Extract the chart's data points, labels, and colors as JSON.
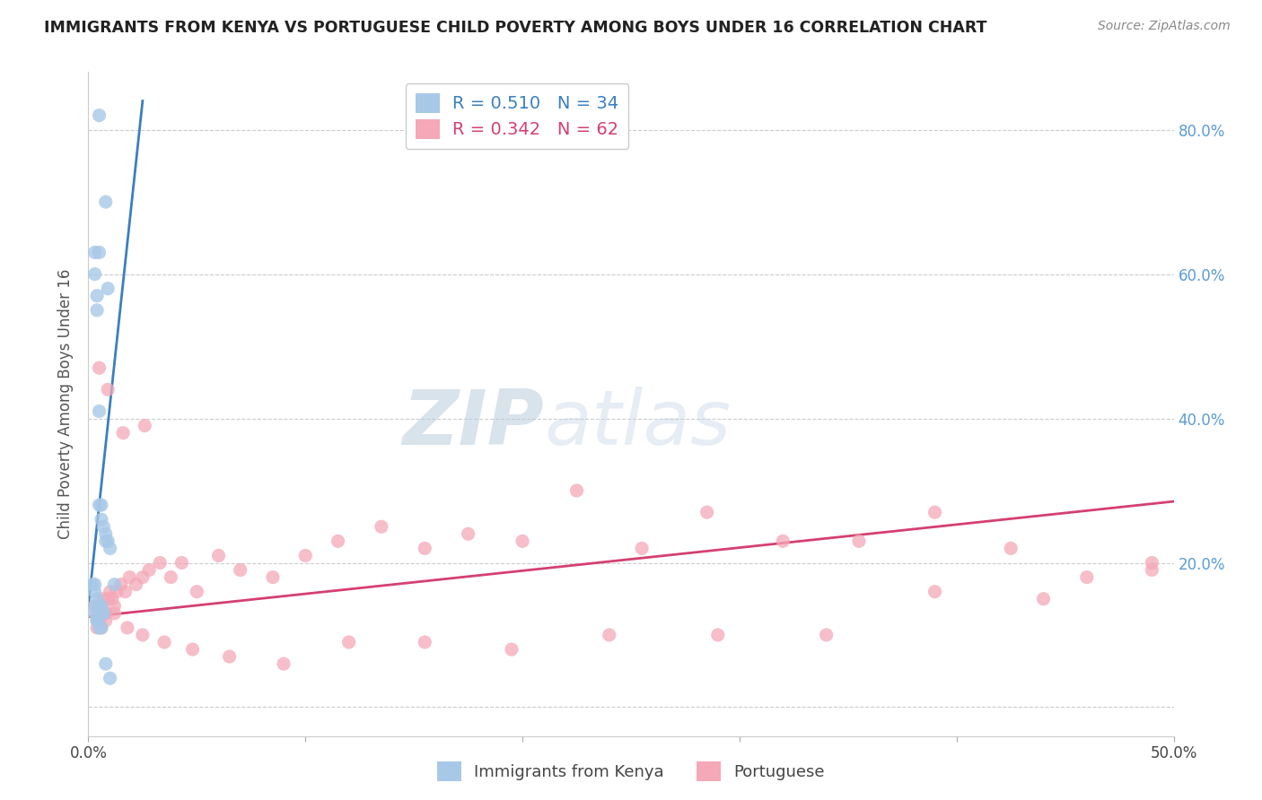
{
  "title": "IMMIGRANTS FROM KENYA VS PORTUGUESE CHILD POVERTY AMONG BOYS UNDER 16 CORRELATION CHART",
  "source": "Source: ZipAtlas.com",
  "ylabel": "Child Poverty Among Boys Under 16",
  "legend_label1": "Immigrants from Kenya",
  "legend_label2": "Portuguese",
  "r1": 0.51,
  "n1": 34,
  "r2": 0.342,
  "n2": 62,
  "xlim": [
    0.0,
    0.5
  ],
  "ylim": [
    -0.04,
    0.88
  ],
  "color_kenya": "#a8c8e8",
  "color_portuguese": "#f4a8b8",
  "trendline_kenya": "#3a7fc1",
  "trendline_portuguese": "#d44070",
  "watermark_zip": "ZIP",
  "watermark_atlas": "atlas",
  "kenya_x": [
    0.005,
    0.008,
    0.003,
    0.005,
    0.009,
    0.003,
    0.004,
    0.004,
    0.005,
    0.005,
    0.006,
    0.006,
    0.007,
    0.008,
    0.008,
    0.009,
    0.01,
    0.012,
    0.003,
    0.002,
    0.003,
    0.004,
    0.005,
    0.003,
    0.003,
    0.004,
    0.004,
    0.005,
    0.006,
    0.006,
    0.007,
    0.006,
    0.008,
    0.01
  ],
  "kenya_y": [
    0.82,
    0.7,
    0.63,
    0.63,
    0.58,
    0.6,
    0.57,
    0.55,
    0.41,
    0.28,
    0.28,
    0.26,
    0.25,
    0.24,
    0.23,
    0.23,
    0.22,
    0.17,
    0.17,
    0.17,
    0.16,
    0.15,
    0.14,
    0.14,
    0.13,
    0.12,
    0.12,
    0.11,
    0.11,
    0.13,
    0.13,
    0.14,
    0.06,
    0.04
  ],
  "kenya_trendline_x": [
    0.0,
    0.025
  ],
  "kenya_trendline_y": [
    0.14,
    0.84
  ],
  "portuguese_x": [
    0.003,
    0.004,
    0.005,
    0.006,
    0.007,
    0.008,
    0.009,
    0.01,
    0.011,
    0.012,
    0.013,
    0.015,
    0.017,
    0.019,
    0.022,
    0.025,
    0.028,
    0.033,
    0.038,
    0.043,
    0.05,
    0.06,
    0.07,
    0.085,
    0.1,
    0.115,
    0.135,
    0.155,
    0.175,
    0.2,
    0.225,
    0.255,
    0.285,
    0.32,
    0.355,
    0.39,
    0.425,
    0.46,
    0.49,
    0.004,
    0.006,
    0.008,
    0.012,
    0.018,
    0.025,
    0.035,
    0.048,
    0.065,
    0.09,
    0.12,
    0.155,
    0.195,
    0.24,
    0.29,
    0.34,
    0.39,
    0.44,
    0.49,
    0.005,
    0.009,
    0.016,
    0.026
  ],
  "portuguese_y": [
    0.14,
    0.13,
    0.12,
    0.14,
    0.15,
    0.13,
    0.15,
    0.16,
    0.15,
    0.14,
    0.16,
    0.17,
    0.16,
    0.18,
    0.17,
    0.18,
    0.19,
    0.2,
    0.18,
    0.2,
    0.16,
    0.21,
    0.19,
    0.18,
    0.21,
    0.23,
    0.25,
    0.22,
    0.24,
    0.23,
    0.3,
    0.22,
    0.27,
    0.23,
    0.23,
    0.27,
    0.22,
    0.18,
    0.2,
    0.11,
    0.11,
    0.12,
    0.13,
    0.11,
    0.1,
    0.09,
    0.08,
    0.07,
    0.06,
    0.09,
    0.09,
    0.08,
    0.1,
    0.1,
    0.1,
    0.16,
    0.15,
    0.19,
    0.47,
    0.44,
    0.38,
    0.39
  ],
  "portuguese_trendline_x": [
    0.0,
    0.5
  ],
  "portuguese_trendline_y": [
    0.125,
    0.285
  ],
  "yticks": [
    0.0,
    0.2,
    0.4,
    0.6,
    0.8
  ],
  "ytick_labels_right": [
    "",
    "20.0%",
    "40.0%",
    "60.0%",
    "80.0%"
  ],
  "xtick_positions": [
    0.0,
    0.1,
    0.2,
    0.3,
    0.4,
    0.5
  ],
  "xtick_labels": [
    "0.0%",
    "",
    "",
    "",
    "",
    "50.0%"
  ]
}
